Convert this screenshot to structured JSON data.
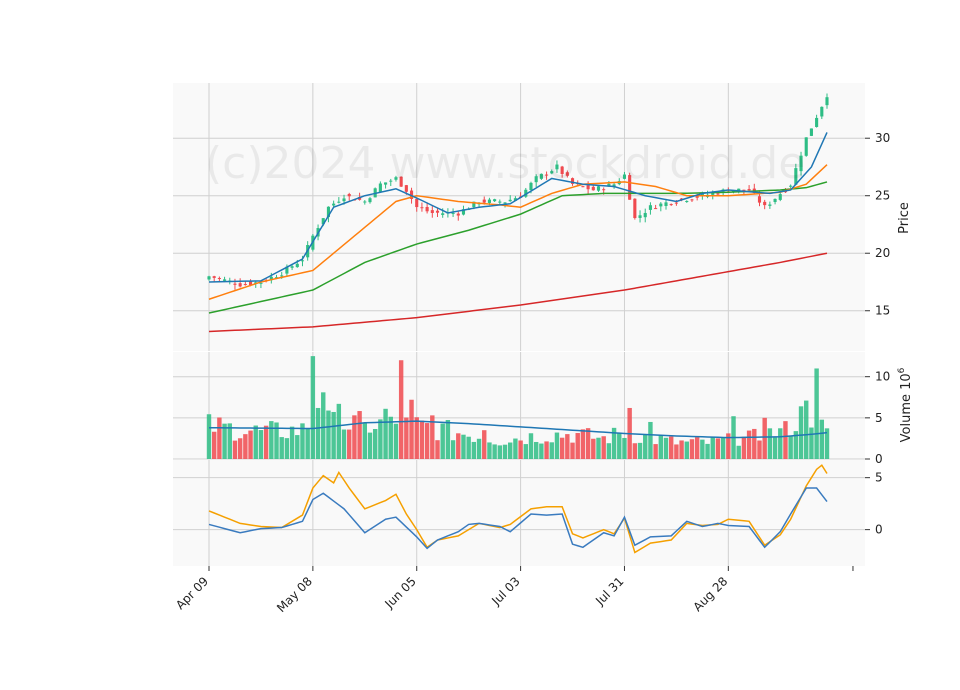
{
  "chart_data": {
    "type": "candlestick",
    "watermark": "(c)2024 www.stockdroid.de",
    "colors": {
      "up": "#2ebd85",
      "down": "#f04a4f",
      "sma_blue": "#1f77b4",
      "sma_orange": "#ff7f0e",
      "sma_green": "#2ca02c",
      "sma_red": "#d62728",
      "macd": "#3a7bbf",
      "signal": "#f5a000",
      "volume_avg": "#1f77b4",
      "panel_bg": "#f9f9f9",
      "grid": "#d0d0d0"
    },
    "x_ticks": [
      {
        "label": "Apr 09",
        "index": 0
      },
      {
        "label": "May 08",
        "index": 20
      },
      {
        "label": "Jun 05",
        "index": 40
      },
      {
        "label": "Jul 03",
        "index": 60
      },
      {
        "label": "Jul 31",
        "index": 80
      },
      {
        "label": "Aug 28",
        "index": 100
      }
    ],
    "n_points": 120,
    "price_panel": {
      "ylabel": "Price",
      "ylim": [
        11.5,
        34.8
      ],
      "yticks": [
        15,
        20,
        25,
        30
      ],
      "close_keypoints": [
        [
          0,
          18.0
        ],
        [
          6,
          17.3
        ],
        [
          10,
          17.5
        ],
        [
          14,
          18.3
        ],
        [
          18,
          19.5
        ],
        [
          20,
          21.5
        ],
        [
          23,
          24.0
        ],
        [
          26,
          25.0
        ],
        [
          30,
          24.5
        ],
        [
          33,
          26.0
        ],
        [
          36,
          26.5
        ],
        [
          38,
          25.5
        ],
        [
          40,
          24.0
        ],
        [
          43,
          23.5
        ],
        [
          48,
          23.5
        ],
        [
          52,
          24.5
        ],
        [
          57,
          24.5
        ],
        [
          60,
          25.0
        ],
        [
          63,
          26.5
        ],
        [
          67,
          27.5
        ],
        [
          70,
          26.0
        ],
        [
          74,
          25.5
        ],
        [
          78,
          26.0
        ],
        [
          80,
          26.8
        ],
        [
          82,
          23.0
        ],
        [
          85,
          24.0
        ],
        [
          89,
          24.5
        ],
        [
          95,
          25.0
        ],
        [
          100,
          25.5
        ],
        [
          104,
          25.5
        ],
        [
          107,
          24.0
        ],
        [
          112,
          26.0
        ],
        [
          115,
          30.0
        ],
        [
          119,
          33.8
        ]
      ],
      "sma_blue_keypoints": [
        [
          0,
          17.5
        ],
        [
          10,
          17.6
        ],
        [
          18,
          19.5
        ],
        [
          24,
          24.0
        ],
        [
          30,
          25.0
        ],
        [
          36,
          25.6
        ],
        [
          40,
          24.8
        ],
        [
          46,
          23.5
        ],
        [
          52,
          24.0
        ],
        [
          58,
          24.3
        ],
        [
          66,
          26.5
        ],
        [
          72,
          26.0
        ],
        [
          78,
          25.8
        ],
        [
          84,
          25.0
        ],
        [
          90,
          24.5
        ],
        [
          95,
          25.2
        ],
        [
          100,
          25.5
        ],
        [
          108,
          25.2
        ],
        [
          112,
          25.5
        ],
        [
          116,
          27.5
        ],
        [
          119,
          30.5
        ]
      ],
      "sma_orange_keypoints": [
        [
          0,
          16.0
        ],
        [
          10,
          17.5
        ],
        [
          20,
          18.5
        ],
        [
          28,
          21.5
        ],
        [
          36,
          24.5
        ],
        [
          40,
          25.0
        ],
        [
          48,
          24.5
        ],
        [
          56,
          24.2
        ],
        [
          60,
          24.0
        ],
        [
          66,
          25.2
        ],
        [
          72,
          26.0
        ],
        [
          80,
          26.2
        ],
        [
          86,
          25.8
        ],
        [
          92,
          25.0
        ],
        [
          100,
          25.0
        ],
        [
          110,
          25.3
        ],
        [
          115,
          26.0
        ],
        [
          119,
          27.7
        ]
      ],
      "sma_green_keypoints": [
        [
          0,
          14.8
        ],
        [
          10,
          15.8
        ],
        [
          20,
          16.8
        ],
        [
          30,
          19.2
        ],
        [
          40,
          20.8
        ],
        [
          50,
          22.0
        ],
        [
          60,
          23.4
        ],
        [
          68,
          25.0
        ],
        [
          76,
          25.2
        ],
        [
          90,
          25.2
        ],
        [
          100,
          25.3
        ],
        [
          110,
          25.5
        ],
        [
          115,
          25.7
        ],
        [
          119,
          26.2
        ]
      ],
      "sma_red_keypoints": [
        [
          0,
          13.2
        ],
        [
          20,
          13.6
        ],
        [
          40,
          14.4
        ],
        [
          60,
          15.5
        ],
        [
          80,
          16.8
        ],
        [
          100,
          18.4
        ],
        [
          110,
          19.2
        ],
        [
          119,
          20.0
        ]
      ]
    },
    "volume_panel": {
      "ylabel": "Volume  10",
      "ylabel_exponent": "6",
      "ylim": [
        0,
        13
      ],
      "yticks": [
        0,
        5,
        10
      ],
      "base_keypoints": [
        [
          0,
          4.0
        ],
        [
          10,
          3.3
        ],
        [
          18,
          3.5
        ],
        [
          20,
          5.0
        ],
        [
          24,
          4.2
        ],
        [
          30,
          4.2
        ],
        [
          40,
          4.0
        ],
        [
          50,
          3.0
        ],
        [
          56,
          2.3
        ],
        [
          66,
          3.0
        ],
        [
          70,
          3.0
        ],
        [
          76,
          2.5
        ],
        [
          80,
          3.2
        ],
        [
          86,
          2.4
        ],
        [
          90,
          2.0
        ],
        [
          96,
          2.0
        ],
        [
          104,
          2.5
        ],
        [
          110,
          3.3
        ],
        [
          116,
          5.5
        ],
        [
          119,
          3.0
        ]
      ],
      "spikes": {
        "20": 12.5,
        "21": 6.2,
        "22": 8.1,
        "25": 6.7,
        "30": 4.4,
        "34": 6.1,
        "37": 12.0,
        "39": 7.2,
        "43": 5.3,
        "53": 3.5,
        "81": 6.2,
        "85": 4.5,
        "101": 5.2,
        "107": 5.0,
        "111": 4.6,
        "114": 6.4,
        "115": 7.1,
        "117": 11.0
      },
      "avg_keypoints": [
        [
          0,
          3.8
        ],
        [
          20,
          3.7
        ],
        [
          30,
          4.4
        ],
        [
          40,
          4.6
        ],
        [
          50,
          4.3
        ],
        [
          60,
          3.9
        ],
        [
          70,
          3.5
        ],
        [
          80,
          3.1
        ],
        [
          90,
          2.8
        ],
        [
          100,
          2.6
        ],
        [
          110,
          2.7
        ],
        [
          116,
          3.0
        ],
        [
          119,
          3.2
        ]
      ]
    },
    "macd_panel": {
      "ylim": [
        -3.5,
        6.7
      ],
      "yticks": [
        0,
        5
      ],
      "macd_keypoints": [
        [
          0,
          0.5
        ],
        [
          6,
          -0.3
        ],
        [
          10,
          0.1
        ],
        [
          14,
          0.2
        ],
        [
          18,
          0.8
        ],
        [
          20,
          2.9
        ],
        [
          22,
          3.5
        ],
        [
          26,
          2.0
        ],
        [
          30,
          -0.3
        ],
        [
          34,
          1.0
        ],
        [
          36,
          1.2
        ],
        [
          40,
          -0.7
        ],
        [
          42,
          -1.8
        ],
        [
          44,
          -1.0
        ],
        [
          48,
          -0.2
        ],
        [
          50,
          0.5
        ],
        [
          52,
          0.6
        ],
        [
          56,
          0.3
        ],
        [
          58,
          -0.2
        ],
        [
          62,
          1.5
        ],
        [
          65,
          1.4
        ],
        [
          68,
          1.5
        ],
        [
          70,
          -1.4
        ],
        [
          72,
          -1.7
        ],
        [
          76,
          -0.3
        ],
        [
          78,
          -0.6
        ],
        [
          80,
          1.2
        ],
        [
          82,
          -1.5
        ],
        [
          85,
          -0.7
        ],
        [
          89,
          -0.6
        ],
        [
          92,
          0.8
        ],
        [
          95,
          0.3
        ],
        [
          98,
          0.6
        ],
        [
          100,
          0.4
        ],
        [
          104,
          0.3
        ],
        [
          107,
          -1.7
        ],
        [
          110,
          -0.2
        ],
        [
          112,
          1.5
        ],
        [
          115,
          4.0
        ],
        [
          117,
          4.0
        ],
        [
          119,
          2.7
        ]
      ],
      "signal_keypoints": [
        [
          0,
          1.8
        ],
        [
          6,
          0.6
        ],
        [
          10,
          0.3
        ],
        [
          14,
          0.2
        ],
        [
          18,
          1.4
        ],
        [
          20,
          4.0
        ],
        [
          22,
          5.2
        ],
        [
          24,
          4.5
        ],
        [
          25,
          5.5
        ],
        [
          27,
          4.0
        ],
        [
          30,
          2.0
        ],
        [
          34,
          2.8
        ],
        [
          36,
          3.4
        ],
        [
          38,
          1.5
        ],
        [
          40,
          0.0
        ],
        [
          42,
          -1.7
        ],
        [
          44,
          -1.0
        ],
        [
          48,
          -0.6
        ],
        [
          50,
          0.0
        ],
        [
          52,
          0.6
        ],
        [
          56,
          0.2
        ],
        [
          58,
          0.5
        ],
        [
          62,
          2.0
        ],
        [
          65,
          2.2
        ],
        [
          68,
          2.2
        ],
        [
          70,
          -0.4
        ],
        [
          72,
          -0.8
        ],
        [
          76,
          0.0
        ],
        [
          78,
          -0.4
        ],
        [
          80,
          1.1
        ],
        [
          82,
          -2.2
        ],
        [
          85,
          -1.3
        ],
        [
          89,
          -1.0
        ],
        [
          92,
          0.6
        ],
        [
          95,
          0.4
        ],
        [
          98,
          0.5
        ],
        [
          100,
          1.0
        ],
        [
          104,
          0.8
        ],
        [
          107,
          -1.5
        ],
        [
          110,
          -0.5
        ],
        [
          112,
          1.0
        ],
        [
          115,
          4.2
        ],
        [
          117,
          5.8
        ],
        [
          118,
          6.2
        ],
        [
          119,
          5.4
        ]
      ]
    }
  }
}
